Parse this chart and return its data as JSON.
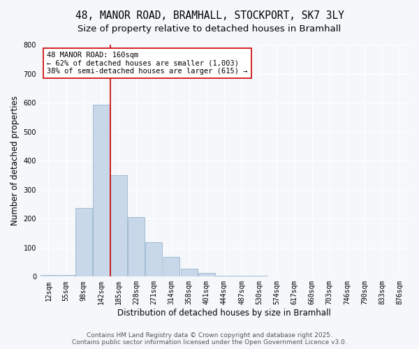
{
  "title1": "48, MANOR ROAD, BRAMHALL, STOCKPORT, SK7 3LY",
  "title2": "Size of property relative to detached houses in Bramhall",
  "xlabel": "Distribution of detached houses by size in Bramhall",
  "ylabel": "Number of detached properties",
  "categories": [
    "12sqm",
    "55sqm",
    "98sqm",
    "142sqm",
    "185sqm",
    "228sqm",
    "271sqm",
    "314sqm",
    "358sqm",
    "401sqm",
    "444sqm",
    "487sqm",
    "530sqm",
    "574sqm",
    "617sqm",
    "660sqm",
    "703sqm",
    "746sqm",
    "790sqm",
    "833sqm",
    "876sqm"
  ],
  "values": [
    5,
    5,
    237,
    593,
    350,
    205,
    118,
    68,
    27,
    14,
    4,
    4,
    4,
    0,
    0,
    0,
    0,
    0,
    0,
    0,
    0
  ],
  "bar_color": "#c8d8e8",
  "bar_edge_color": "#8aacc8",
  "vline_x": 3.5,
  "vline_color": "#cc0000",
  "annotation_text": "48 MANOR ROAD: 160sqm\n← 62% of detached houses are smaller (1,003)\n38% of semi-detached houses are larger (615) →",
  "annotation_box_color": "#cc0000",
  "ylim": [
    0,
    800
  ],
  "yticks": [
    0,
    100,
    200,
    300,
    400,
    500,
    600,
    700,
    800
  ],
  "footer1": "Contains HM Land Registry data © Crown copyright and database right 2025.",
  "footer2": "Contains public sector information licensed under the Open Government Licence v3.0.",
  "bg_color": "#f5f7fa",
  "plot_bg_color": "#f5f7fa",
  "grid_color": "#ffffff",
  "title_fontsize": 10.5,
  "subtitle_fontsize": 9.5,
  "axis_label_fontsize": 8.5,
  "tick_fontsize": 7,
  "annotation_fontsize": 7.5,
  "footer_fontsize": 6.5
}
